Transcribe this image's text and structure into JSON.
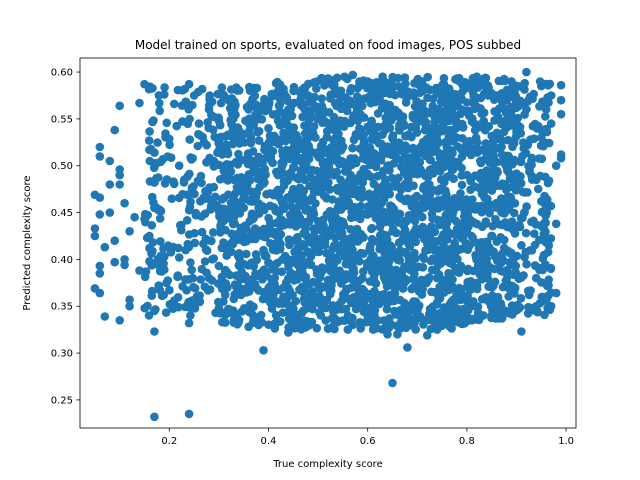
{
  "chart_data": {
    "type": "scatter",
    "title": "Model trained on sports, evaluated on food images, POS subbed",
    "xlabel": "True complexity score",
    "ylabel": "Predicted complexity score",
    "xlim": [
      0.02,
      1.02
    ],
    "ylim": [
      0.22,
      0.615
    ],
    "xticks": [
      0.2,
      0.4,
      0.6,
      0.8,
      1.0
    ],
    "xtick_labels": [
      "0.2",
      "0.4",
      "0.6",
      "0.8",
      "1.0"
    ],
    "yticks": [
      0.25,
      0.3,
      0.35,
      0.4,
      0.45,
      0.5,
      0.55,
      0.6
    ],
    "ytick_labels": [
      "0.25",
      "0.30",
      "0.35",
      "0.40",
      "0.45",
      "0.50",
      "0.55",
      "0.60"
    ],
    "grid": false,
    "marker_color": "#1f77b4",
    "series": [
      {
        "points": [
          [
            0.17,
            0.232
          ],
          [
            0.24,
            0.235
          ],
          [
            0.65,
            0.268
          ],
          [
            0.39,
            0.303
          ],
          [
            0.68,
            0.306
          ],
          [
            0.17,
            0.323
          ],
          [
            0.1,
            0.335
          ],
          [
            0.07,
            0.339
          ],
          [
            0.24,
            0.332
          ],
          [
            0.05,
            0.369
          ],
          [
            0.06,
            0.364
          ],
          [
            0.12,
            0.35
          ],
          [
            0.12,
            0.357
          ],
          [
            0.17,
            0.345
          ],
          [
            0.21,
            0.356
          ],
          [
            0.25,
            0.348
          ],
          [
            0.3,
            0.348
          ],
          [
            0.32,
            0.347
          ],
          [
            0.36,
            0.328
          ],
          [
            0.37,
            0.335
          ],
          [
            0.38,
            0.33
          ],
          [
            0.44,
            0.322
          ],
          [
            0.45,
            0.328
          ],
          [
            0.48,
            0.331
          ],
          [
            0.52,
            0.326
          ],
          [
            0.56,
            0.325
          ],
          [
            0.57,
            0.33
          ],
          [
            0.6,
            0.336
          ],
          [
            0.64,
            0.32
          ],
          [
            0.66,
            0.32
          ],
          [
            0.72,
            0.319
          ],
          [
            0.74,
            0.325
          ],
          [
            0.79,
            0.331
          ],
          [
            0.81,
            0.335
          ],
          [
            0.86,
            0.342
          ],
          [
            0.91,
            0.323
          ],
          [
            0.94,
            0.35
          ],
          [
            0.96,
            0.36
          ],
          [
            0.98,
            0.364
          ],
          [
            0.97,
            0.35
          ],
          [
            0.06,
            0.385
          ],
          [
            0.06,
            0.393
          ],
          [
            0.09,
            0.397
          ],
          [
            0.11,
            0.394
          ],
          [
            0.11,
            0.4
          ],
          [
            0.14,
            0.388
          ],
          [
            0.16,
            0.398
          ],
          [
            0.16,
            0.412
          ],
          [
            0.19,
            0.389
          ],
          [
            0.19,
            0.403
          ],
          [
            0.22,
            0.402
          ],
          [
            0.24,
            0.414
          ],
          [
            0.28,
            0.38
          ],
          [
            0.05,
            0.425
          ],
          [
            0.05,
            0.433
          ],
          [
            0.07,
            0.413
          ],
          [
            0.09,
            0.42
          ],
          [
            0.12,
            0.43
          ],
          [
            0.13,
            0.445
          ],
          [
            0.16,
            0.425
          ],
          [
            0.06,
            0.448
          ],
          [
            0.08,
            0.45
          ],
          [
            0.11,
            0.46
          ],
          [
            0.1,
            0.48
          ],
          [
            0.08,
            0.48
          ],
          [
            0.05,
            0.469
          ],
          [
            0.06,
            0.466
          ],
          [
            0.06,
            0.52
          ],
          [
            0.06,
            0.51
          ],
          [
            0.08,
            0.505
          ],
          [
            0.1,
            0.496
          ],
          [
            0.1,
            0.49
          ],
          [
            0.09,
            0.538
          ],
          [
            0.1,
            0.564
          ],
          [
            0.14,
            0.567
          ],
          [
            0.15,
            0.587
          ],
          [
            0.16,
            0.517
          ],
          [
            0.17,
            0.514
          ],
          [
            0.17,
            0.482
          ],
          [
            0.17,
            0.455
          ],
          [
            0.19,
            0.576
          ],
          [
            0.21,
            0.566
          ],
          [
            0.22,
            0.5
          ],
          [
            0.23,
            0.485
          ],
          [
            0.24,
            0.587
          ],
          [
            0.25,
            0.575
          ],
          [
            0.26,
            0.545
          ],
          [
            0.27,
            0.525
          ],
          [
            0.28,
            0.56
          ],
          [
            0.29,
            0.505
          ],
          [
            0.3,
            0.548
          ],
          [
            0.31,
            0.572
          ],
          [
            0.32,
            0.532
          ],
          [
            0.33,
            0.485
          ],
          [
            0.33,
            0.445
          ],
          [
            0.34,
            0.421
          ],
          [
            0.35,
            0.47
          ],
          [
            0.35,
            0.395
          ],
          [
            0.36,
            0.56
          ],
          [
            0.37,
            0.505
          ],
          [
            0.38,
            0.455
          ],
          [
            0.39,
            0.41
          ],
          [
            0.39,
            0.365
          ],
          [
            0.4,
            0.54
          ],
          [
            0.41,
            0.575
          ],
          [
            0.42,
            0.49
          ],
          [
            0.42,
            0.43
          ],
          [
            0.43,
            0.36
          ],
          [
            0.44,
            0.56
          ],
          [
            0.45,
            0.515
          ],
          [
            0.46,
            0.47
          ],
          [
            0.46,
            0.398
          ],
          [
            0.47,
            0.345
          ],
          [
            0.48,
            0.575
          ],
          [
            0.49,
            0.535
          ],
          [
            0.49,
            0.452
          ],
          [
            0.5,
            0.415
          ],
          [
            0.51,
            0.56
          ],
          [
            0.52,
            0.495
          ],
          [
            0.52,
            0.378
          ],
          [
            0.53,
            0.345
          ],
          [
            0.54,
            0.58
          ],
          [
            0.55,
            0.52
          ],
          [
            0.55,
            0.44
          ],
          [
            0.56,
            0.405
          ],
          [
            0.57,
            0.597
          ],
          [
            0.58,
            0.548
          ],
          [
            0.59,
            0.485
          ],
          [
            0.59,
            0.365
          ],
          [
            0.6,
            0.59
          ],
          [
            0.61,
            0.53
          ],
          [
            0.62,
            0.455
          ],
          [
            0.62,
            0.398
          ],
          [
            0.63,
            0.595
          ],
          [
            0.64,
            0.565
          ],
          [
            0.64,
            0.5
          ],
          [
            0.65,
            0.43
          ],
          [
            0.66,
            0.372
          ],
          [
            0.67,
            0.58
          ],
          [
            0.67,
            0.52
          ],
          [
            0.68,
            0.465
          ],
          [
            0.69,
            0.395
          ],
          [
            0.7,
            0.35
          ],
          [
            0.71,
            0.585
          ],
          [
            0.72,
            0.54
          ],
          [
            0.72,
            0.48
          ],
          [
            0.73,
            0.42
          ],
          [
            0.74,
            0.365
          ],
          [
            0.75,
            0.575
          ],
          [
            0.76,
            0.505
          ],
          [
            0.77,
            0.445
          ],
          [
            0.77,
            0.378
          ],
          [
            0.78,
            0.593
          ],
          [
            0.79,
            0.56
          ],
          [
            0.8,
            0.49
          ],
          [
            0.8,
            0.43
          ],
          [
            0.81,
            0.355
          ],
          [
            0.82,
            0.595
          ],
          [
            0.83,
            0.545
          ],
          [
            0.83,
            0.47
          ],
          [
            0.84,
            0.4
          ],
          [
            0.85,
            0.34
          ],
          [
            0.86,
            0.575
          ],
          [
            0.87,
            0.52
          ],
          [
            0.87,
            0.45
          ],
          [
            0.88,
            0.385
          ],
          [
            0.89,
            0.59
          ],
          [
            0.9,
            0.535
          ],
          [
            0.9,
            0.475
          ],
          [
            0.91,
            0.415
          ],
          [
            0.92,
            0.6
          ],
          [
            0.92,
            0.56
          ],
          [
            0.93,
            0.505
          ],
          [
            0.93,
            0.44
          ],
          [
            0.94,
            0.38
          ],
          [
            0.95,
            0.585
          ],
          [
            0.95,
            0.53
          ],
          [
            0.96,
            0.465
          ],
          [
            0.96,
            0.42
          ],
          [
            0.97,
            0.575
          ],
          [
            0.97,
            0.545
          ],
          [
            0.98,
            0.5
          ],
          [
            0.98,
            0.438
          ],
          [
            0.99,
            0.586
          ],
          [
            0.99,
            0.57
          ],
          [
            0.99,
            0.555
          ],
          [
            0.99,
            0.512
          ],
          [
            0.99,
            0.508
          ],
          [
            0.96,
            0.56
          ],
          [
            0.94,
            0.485
          ]
        ]
      }
    ],
    "fill_cloud": [
      {
        "x_min": 0.15,
        "x_max": 0.3,
        "y_min": 0.34,
        "y_max": 0.585,
        "n": 220
      },
      {
        "x_min": 0.3,
        "x_max": 0.4,
        "y_min": 0.33,
        "y_max": 0.585,
        "n": 330
      },
      {
        "x_min": 0.4,
        "x_max": 0.5,
        "y_min": 0.325,
        "y_max": 0.59,
        "n": 420
      },
      {
        "x_min": 0.5,
        "x_max": 0.6,
        "y_min": 0.325,
        "y_max": 0.595,
        "n": 440
      },
      {
        "x_min": 0.6,
        "x_max": 0.7,
        "y_min": 0.325,
        "y_max": 0.595,
        "n": 460
      },
      {
        "x_min": 0.7,
        "x_max": 0.8,
        "y_min": 0.325,
        "y_max": 0.595,
        "n": 460
      },
      {
        "x_min": 0.8,
        "x_max": 0.9,
        "y_min": 0.335,
        "y_max": 0.595,
        "n": 380
      },
      {
        "x_min": 0.9,
        "x_max": 0.97,
        "y_min": 0.34,
        "y_max": 0.59,
        "n": 160
      }
    ]
  }
}
